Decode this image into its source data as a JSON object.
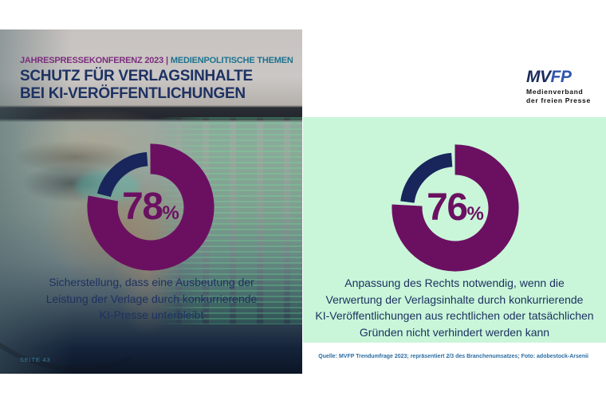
{
  "header": {
    "eyebrow_left": "JAHRESPRESSEKONFERENZ 2023",
    "eyebrow_divider": "|",
    "eyebrow_right": "MEDIENPOLITISCHE THEMEN",
    "title_line1": "SCHUTZ FÜR VERLAGSINHALTE",
    "title_line2": "BEI KI-VERÖFFENTLICHUNGEN"
  },
  "logo": {
    "letters_dark": "MV",
    "letters_blue": "FP",
    "sub_line1": "Medienverband",
    "sub_line2": "der freien Presse"
  },
  "left_panel": {
    "percent": "78",
    "percent_sign": "%",
    "caption_line1": "Sicherstellung, dass eine Ausbeutung der",
    "caption_line2": "Leistung der Verlage durch konkurrierende",
    "caption_line3": "KI-Presse unterbleibt",
    "page_label": "SEITE 43"
  },
  "right_panel": {
    "percent": "76",
    "percent_sign": "%",
    "caption_line1": "Anpassung des Rechts notwendig, wenn die",
    "caption_line2": "Verwertung der Verlagsinhalte durch konkurrierende",
    "caption_line3": "KI-Veröffentlichungen aus rechtlichen oder tatsächlichen",
    "caption_line4": "Gründen nicht verhindert werden kann",
    "source": "Quelle: MVFP Trendumfrage 2023; repräsentiert 2/3 des Branchenumsatzes; Foto: adobestock-Arsenii"
  },
  "colors": {
    "donut_value": "#6b1061",
    "donut_remainder": "#18265c",
    "title_navy": "#1d3263",
    "eyebrow_purple": "#7b2d7d",
    "eyebrow_teal": "#1d7390",
    "mint_background": "#c9f6d9",
    "source_blue": "#2b6da3",
    "page_label_teal": "#367ca0",
    "logo_navy": "#1b2b5c",
    "logo_blue": "#2f55ad"
  },
  "chart_data": [
    {
      "type": "pie",
      "subtype": "donut",
      "panel": "left",
      "value_pct": 78,
      "remainder_pct": 22,
      "center_label": "78%",
      "caption": "Sicherstellung, dass eine Ausbeutung der Leistung der Verlage durch konkurrierende KI-Presse unterbleibt",
      "value_color": "#6b1061",
      "remainder_color": "#18265c",
      "start_angle_deg": 0,
      "direction": "clockwise"
    },
    {
      "type": "pie",
      "subtype": "donut",
      "panel": "right",
      "value_pct": 76,
      "remainder_pct": 24,
      "center_label": "76%",
      "caption": "Anpassung des Rechts notwendig, wenn die Verwertung der Verlagsinhalte durch konkurrierende KI-Veröffentlichungen aus rechtlichen oder tatsächlichen Gründen nicht verhindert werden kann",
      "value_color": "#6b1061",
      "remainder_color": "#18265c",
      "start_angle_deg": 0,
      "direction": "clockwise"
    }
  ]
}
